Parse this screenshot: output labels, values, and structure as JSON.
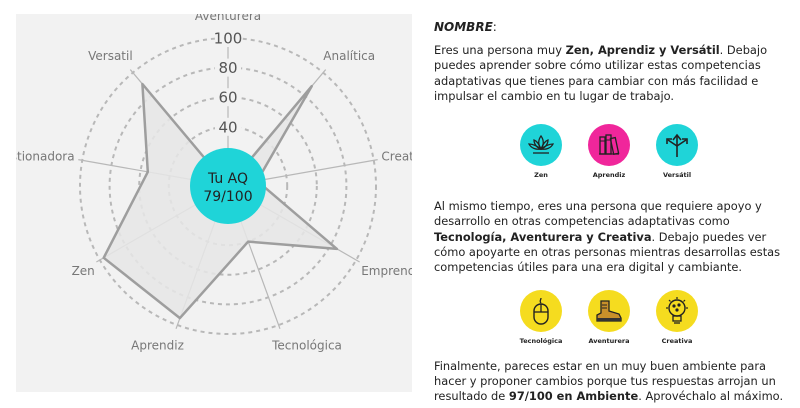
{
  "radar": {
    "axes": [
      {
        "name": "Aventurera",
        "value": 0
      },
      {
        "name": "Analítica",
        "value": 88
      },
      {
        "name": "Creativa",
        "value": 20
      },
      {
        "name": "Emprendedora",
        "value": 85
      },
      {
        "name": "Tecnológica",
        "value": 40
      },
      {
        "name": "Aprendiz",
        "value": 95
      },
      {
        "name": "Zen",
        "value": 97
      },
      {
        "name": "Cuestionadora",
        "value": 55
      },
      {
        "name": "Versatil",
        "value": 90
      }
    ],
    "ticks": [
      "40",
      "60",
      "80",
      "100"
    ],
    "center_title": "Tu AQ",
    "center_score": "79/100",
    "colors": {
      "panel": "#f2f2f2",
      "grid": "#b8b8b8",
      "polygon_fill": "#e6e6e6",
      "polygon_stroke": "#9e9e9e",
      "center": "#1fd4d8"
    }
  },
  "text": {
    "name_label": "NOMBRE",
    "name_suffix": ":",
    "p1_a": "Eres una persona muy ",
    "p1_b": "Zen, Aprendiz y Versátil",
    "p1_c": ". Debajo puedes aprender sobre cómo utilizar estas competencias adaptativas que tienes para cambiar con más facilidad e impulsar el cambio en tu lugar de trabajo.",
    "p2_a": "Al mismo tiempo, eres una persona que requiere apoyo y desarrollo en otras competencias adaptativas como ",
    "p2_b": "Tecnología, Aventurera y Creativa",
    "p2_c": ". Debajo puedes ver cómo apoyarte en otras personas mientras desarrollas estas competencias útiles para una era digital y cambiante.",
    "p3_a": "Finalmente, pareces estar en un muy buen ambiente para hacer y proponer cambios porque tus respuestas arrojan un resultado de ",
    "p3_b": "97/100 en Ambiente",
    "p3_c": ". Aprovéchalo al máximo."
  },
  "strengths": [
    {
      "label": "Zen",
      "icon": "lotus-icon",
      "color": "#1fd4d8"
    },
    {
      "label": "Aprendiz",
      "icon": "books-icon",
      "color": "#f0269b"
    },
    {
      "label": "Versátil",
      "icon": "arrows-icon",
      "color": "#1fd4d8"
    }
  ],
  "weaknesses": [
    {
      "label": "Tecnológica",
      "icon": "mouse-icon",
      "color": "#f5dc1f"
    },
    {
      "label": "Aventurera",
      "icon": "boot-icon",
      "color": "#f5dc1f"
    },
    {
      "label": "Creativa",
      "icon": "lightbulb-icon",
      "color": "#f5dc1f"
    }
  ]
}
